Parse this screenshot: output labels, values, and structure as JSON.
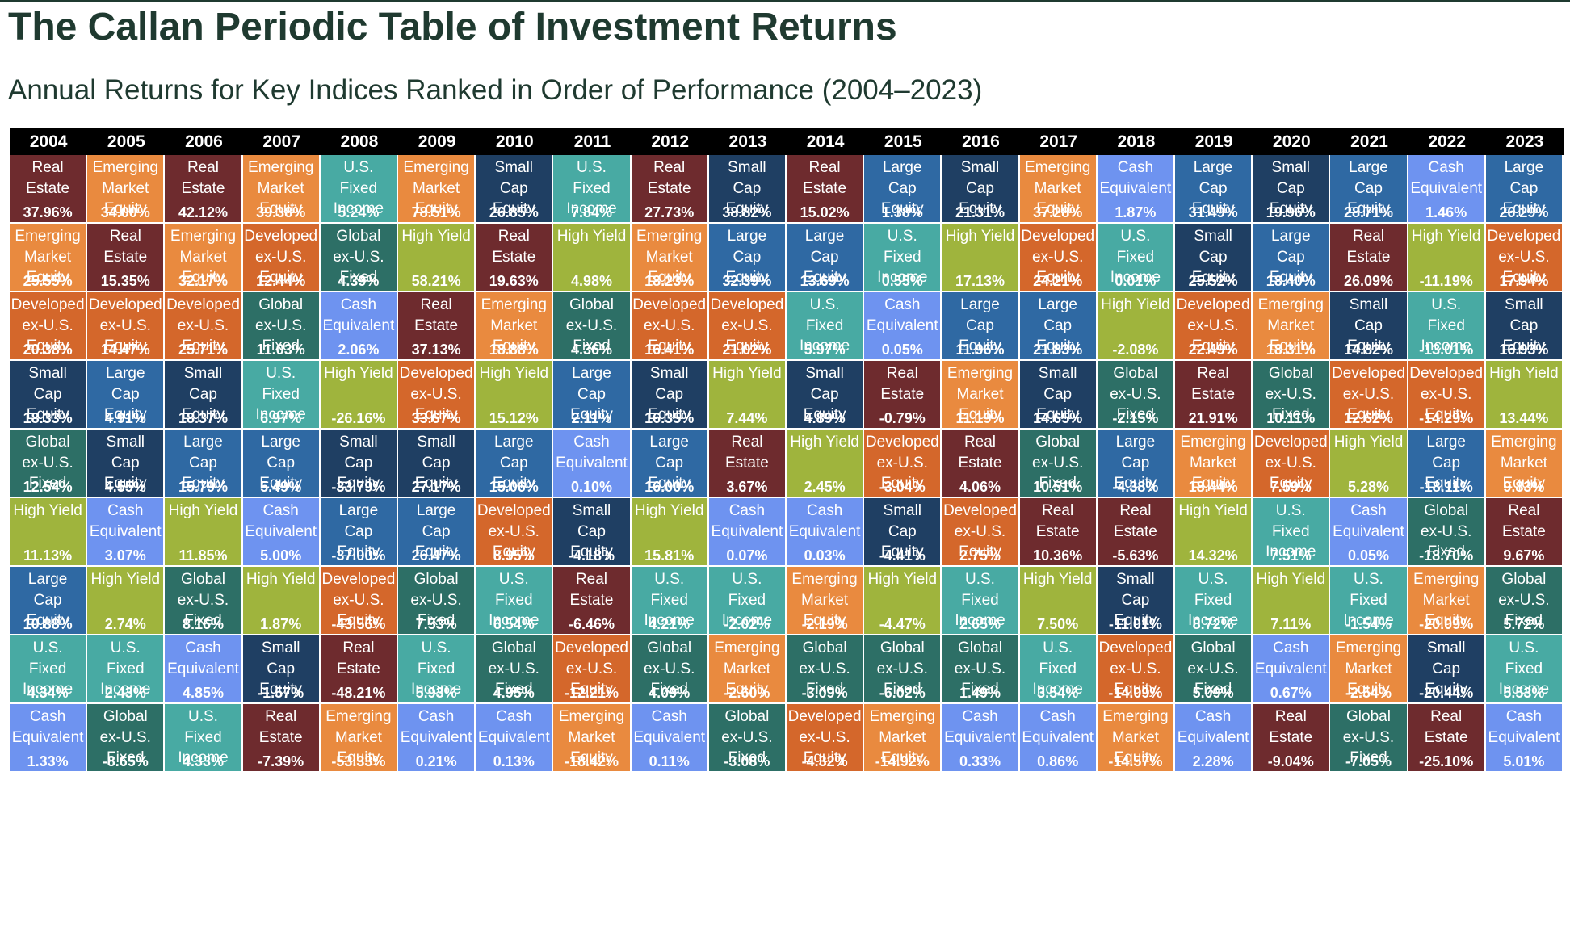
{
  "title": "The Callan Periodic Table of Investment Returns",
  "subtitle": "Annual Returns for Key Indices Ranked in Order of Performance (2004–2023)",
  "chart_data": {
    "type": "table",
    "years": [
      "2004",
      "2005",
      "2006",
      "2007",
      "2008",
      "2009",
      "2010",
      "2011",
      "2012",
      "2013",
      "2014",
      "2015",
      "2016",
      "2017",
      "2018",
      "2019",
      "2020",
      "2021",
      "2022",
      "2023"
    ],
    "categories": [
      {
        "key": "RE",
        "lines": [
          "Real",
          "Estate"
        ],
        "color": "#6e2b2e"
      },
      {
        "key": "EM",
        "lines": [
          "Emerging",
          "Market",
          "Equity"
        ],
        "color": "#e98a3f"
      },
      {
        "key": "DEV",
        "lines": [
          "Developed",
          "ex-U.S.",
          "Equity"
        ],
        "color": "#d4672b"
      },
      {
        "key": "SC",
        "lines": [
          "Small",
          "Cap",
          "Equity"
        ],
        "color": "#1f3f63"
      },
      {
        "key": "LC",
        "lines": [
          "Large",
          "Cap",
          "Equity"
        ],
        "color": "#2f69a3"
      },
      {
        "key": "GF",
        "lines": [
          "Global",
          "ex-U.S.",
          "Fixed"
        ],
        "color": "#2d6f66"
      },
      {
        "key": "USF",
        "lines": [
          "U.S.",
          "Fixed",
          "Income"
        ],
        "color": "#48aaa3"
      },
      {
        "key": "HY",
        "lines": [
          "High Yield"
        ],
        "color": "#9fb43d"
      },
      {
        "key": "CASH",
        "lines": [
          "Cash",
          "Equivalent"
        ],
        "color": "#6e93f0"
      }
    ],
    "columns": [
      [
        [
          "RE",
          "37.96%"
        ],
        [
          "EM",
          "25.55%"
        ],
        [
          "DEV",
          "20.38%"
        ],
        [
          "SC",
          "18.33%"
        ],
        [
          "GF",
          "12.54%"
        ],
        [
          "HY",
          "11.13%"
        ],
        [
          "LC",
          "10.88%"
        ],
        [
          "USF",
          "4.34%"
        ],
        [
          "CASH",
          "1.33%"
        ]
      ],
      [
        [
          "EM",
          "34.00%"
        ],
        [
          "RE",
          "15.35%"
        ],
        [
          "DEV",
          "14.47%"
        ],
        [
          "LC",
          "4.91%"
        ],
        [
          "SC",
          "4.55%"
        ],
        [
          "CASH",
          "3.07%"
        ],
        [
          "HY",
          "2.74%"
        ],
        [
          "USF",
          "2.43%"
        ],
        [
          "GF",
          "-8.65%"
        ]
      ],
      [
        [
          "RE",
          "42.12%"
        ],
        [
          "EM",
          "32.17%"
        ],
        [
          "DEV",
          "25.71%"
        ],
        [
          "SC",
          "18.37%"
        ],
        [
          "LC",
          "15.79%"
        ],
        [
          "HY",
          "11.85%"
        ],
        [
          "GF",
          "8.16%"
        ],
        [
          "CASH",
          "4.85%"
        ],
        [
          "USF",
          "4.33%"
        ]
      ],
      [
        [
          "EM",
          "39.38%"
        ],
        [
          "DEV",
          "12.44%"
        ],
        [
          "GF",
          "11.03%"
        ],
        [
          "USF",
          "6.97%"
        ],
        [
          "LC",
          "5.49%"
        ],
        [
          "CASH",
          "5.00%"
        ],
        [
          "HY",
          "1.87%"
        ],
        [
          "SC",
          "-1.57%"
        ],
        [
          "RE",
          "-7.39%"
        ]
      ],
      [
        [
          "USF",
          "5.24%"
        ],
        [
          "GF",
          "4.39%"
        ],
        [
          "CASH",
          "2.06%"
        ],
        [
          "HY",
          "-26.16%"
        ],
        [
          "SC",
          "-33.79%"
        ],
        [
          "LC",
          "-37.00%"
        ],
        [
          "DEV",
          "-43.56%"
        ],
        [
          "RE",
          "-48.21%"
        ],
        [
          "EM",
          "-53.33%"
        ]
      ],
      [
        [
          "EM",
          "78.51%"
        ],
        [
          "HY",
          "58.21%"
        ],
        [
          "RE",
          "37.13%"
        ],
        [
          "DEV",
          "33.67%"
        ],
        [
          "SC",
          "27.17%"
        ],
        [
          "LC",
          "26.47%"
        ],
        [
          "GF",
          "7.53%"
        ],
        [
          "USF",
          "5.93%"
        ],
        [
          "CASH",
          "0.21%"
        ]
      ],
      [
        [
          "SC",
          "26.85%"
        ],
        [
          "RE",
          "19.63%"
        ],
        [
          "EM",
          "18.88%"
        ],
        [
          "HY",
          "15.12%"
        ],
        [
          "LC",
          "15.06%"
        ],
        [
          "DEV",
          "8.95%"
        ],
        [
          "USF",
          "6.54%"
        ],
        [
          "GF",
          "4.95%"
        ],
        [
          "CASH",
          "0.13%"
        ]
      ],
      [
        [
          "USF",
          "7.84%"
        ],
        [
          "HY",
          "4.98%"
        ],
        [
          "GF",
          "4.36%"
        ],
        [
          "LC",
          "2.11%"
        ],
        [
          "CASH",
          "0.10%"
        ],
        [
          "SC",
          "-4.18%"
        ],
        [
          "RE",
          "-6.46%"
        ],
        [
          "DEV",
          "-12.21%"
        ],
        [
          "EM",
          "-18.42%"
        ]
      ],
      [
        [
          "RE",
          "27.73%"
        ],
        [
          "EM",
          "18.23%"
        ],
        [
          "DEV",
          "16.41%"
        ],
        [
          "SC",
          "16.35%"
        ],
        [
          "LC",
          "16.00%"
        ],
        [
          "HY",
          "15.81%"
        ],
        [
          "USF",
          "4.21%"
        ],
        [
          "GF",
          "4.09%"
        ],
        [
          "CASH",
          "0.11%"
        ]
      ],
      [
        [
          "SC",
          "38.82%"
        ],
        [
          "LC",
          "32.39%"
        ],
        [
          "DEV",
          "21.02%"
        ],
        [
          "HY",
          "7.44%"
        ],
        [
          "RE",
          "3.67%"
        ],
        [
          "CASH",
          "0.07%"
        ],
        [
          "USF",
          "-2.02%"
        ],
        [
          "EM",
          "-2.60%"
        ],
        [
          "GF",
          "-3.08%"
        ]
      ],
      [
        [
          "RE",
          "15.02%"
        ],
        [
          "LC",
          "13.69%"
        ],
        [
          "USF",
          "5.97%"
        ],
        [
          "SC",
          "4.89%"
        ],
        [
          "HY",
          "2.45%"
        ],
        [
          "CASH",
          "0.03%"
        ],
        [
          "EM",
          "-2.19%"
        ],
        [
          "GF",
          "-3.09%"
        ],
        [
          "DEV",
          "-4.32%"
        ]
      ],
      [
        [
          "LC",
          "1.38%"
        ],
        [
          "USF",
          "0.55%"
        ],
        [
          "CASH",
          "0.05%"
        ],
        [
          "RE",
          "-0.79%"
        ],
        [
          "DEV",
          "-3.04%"
        ],
        [
          "SC",
          "-4.41%"
        ],
        [
          "HY",
          "-4.47%"
        ],
        [
          "GF",
          "-6.02%"
        ],
        [
          "EM",
          "-14.92%"
        ]
      ],
      [
        [
          "SC",
          "21.31%"
        ],
        [
          "HY",
          "17.13%"
        ],
        [
          "LC",
          "11.96%"
        ],
        [
          "EM",
          "11.19%"
        ],
        [
          "RE",
          "4.06%"
        ],
        [
          "DEV",
          "2.75%"
        ],
        [
          "USF",
          "2.65%"
        ],
        [
          "GF",
          "1.49%"
        ],
        [
          "CASH",
          "0.33%"
        ]
      ],
      [
        [
          "EM",
          "37.28%"
        ],
        [
          "DEV",
          "24.21%"
        ],
        [
          "LC",
          "21.83%"
        ],
        [
          "SC",
          "14.65%"
        ],
        [
          "GF",
          "10.51%"
        ],
        [
          "RE",
          "10.36%"
        ],
        [
          "HY",
          "7.50%"
        ],
        [
          "USF",
          "3.54%"
        ],
        [
          "CASH",
          "0.86%"
        ]
      ],
      [
        [
          "CASH",
          "1.87%"
        ],
        [
          "USF",
          "0.01%"
        ],
        [
          "HY",
          "-2.08%"
        ],
        [
          "GF",
          "-2.15%"
        ],
        [
          "LC",
          "-4.38%"
        ],
        [
          "RE",
          "-5.63%"
        ],
        [
          "SC",
          "-11.01%"
        ],
        [
          "DEV",
          "-14.09%"
        ],
        [
          "EM",
          "-14.57%"
        ]
      ],
      [
        [
          "LC",
          "31.49%"
        ],
        [
          "SC",
          "25.52%"
        ],
        [
          "DEV",
          "22.49%"
        ],
        [
          "RE",
          "21.91%"
        ],
        [
          "EM",
          "18.44%"
        ],
        [
          "HY",
          "14.32%"
        ],
        [
          "USF",
          "8.72%"
        ],
        [
          "GF",
          "5.09%"
        ],
        [
          "CASH",
          "2.28%"
        ]
      ],
      [
        [
          "SC",
          "19.96%"
        ],
        [
          "LC",
          "18.40%"
        ],
        [
          "EM",
          "18.31%"
        ],
        [
          "GF",
          "10.11%"
        ],
        [
          "DEV",
          "7.59%"
        ],
        [
          "USF",
          "7.51%"
        ],
        [
          "HY",
          "7.11%"
        ],
        [
          "CASH",
          "0.67%"
        ],
        [
          "RE",
          "-9.04%"
        ]
      ],
      [
        [
          "LC",
          "28.71%"
        ],
        [
          "RE",
          "26.09%"
        ],
        [
          "SC",
          "14.82%"
        ],
        [
          "DEV",
          "12.62%"
        ],
        [
          "HY",
          "5.28%"
        ],
        [
          "CASH",
          "0.05%"
        ],
        [
          "USF",
          "-1.54%"
        ],
        [
          "EM",
          "-2.54%"
        ],
        [
          "GF",
          "-7.05%"
        ]
      ],
      [
        [
          "CASH",
          "1.46%"
        ],
        [
          "HY",
          "-11.19%"
        ],
        [
          "USF",
          "-13.01%"
        ],
        [
          "DEV",
          "-14.29%"
        ],
        [
          "LC",
          "-18.11%"
        ],
        [
          "GF",
          "-18.70%"
        ],
        [
          "EM",
          "-20.09%"
        ],
        [
          "SC",
          "-20.44%"
        ],
        [
          "RE",
          "-25.10%"
        ]
      ],
      [
        [
          "LC",
          "26.29%"
        ],
        [
          "DEV",
          "17.94%"
        ],
        [
          "SC",
          "16.93%"
        ],
        [
          "HY",
          "13.44%"
        ],
        [
          "EM",
          "9.83%"
        ],
        [
          "RE",
          "9.67%"
        ],
        [
          "GF",
          "5.72%"
        ],
        [
          "USF",
          "5.53%"
        ],
        [
          "CASH",
          "5.01%"
        ]
      ]
    ]
  }
}
